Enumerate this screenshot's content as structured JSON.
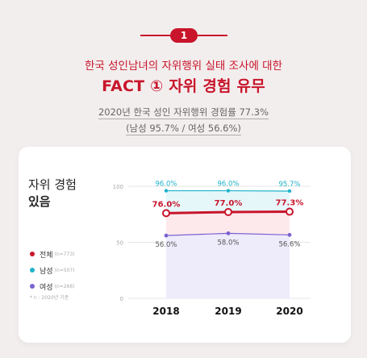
{
  "badge": "1",
  "header": {
    "subtitle": "한국 성인남녀의 자위행위 실태 조사에 대한",
    "title": "FACT ① 자위 경험 유무",
    "stat_line1": "2020년 한국 성인 자위행위 경험률 77.3%",
    "stat_line2": "(남성 95.7% / 여성 56.6%)"
  },
  "card": {
    "title_line1": "자위 경험",
    "title_line2": "있음",
    "note": "* n : 2020년 기준"
  },
  "legend": [
    {
      "label": "전체",
      "n": "(n=773)",
      "color": "#c8152b"
    },
    {
      "label": "남성",
      "n": "(n=507)",
      "color": "#1fb3c9"
    },
    {
      "label": "여성",
      "n": "(n=266)",
      "color": "#7a62d0"
    }
  ],
  "chart_data": {
    "type": "line",
    "x": [
      "2018",
      "2019",
      "2020"
    ],
    "ylim": [
      0,
      100
    ],
    "yticks": [
      "0",
      "50",
      "100"
    ],
    "series": [
      {
        "name": "남성",
        "values": [
          96.0,
          96.0,
          95.7
        ],
        "labels": [
          "96.0%",
          "96.0%",
          "95.7%"
        ],
        "color": "#1fb3c9"
      },
      {
        "name": "전체",
        "values": [
          76.0,
          77.0,
          77.3
        ],
        "labels": [
          "76.0%",
          "77.0%",
          "77.3%"
        ],
        "color": "#c8152b"
      },
      {
        "name": "여성",
        "values": [
          56.0,
          58.0,
          56.6
        ],
        "labels": [
          "56.0%",
          "58.0%",
          "56.6%"
        ],
        "color": "#7a62d0"
      }
    ]
  }
}
